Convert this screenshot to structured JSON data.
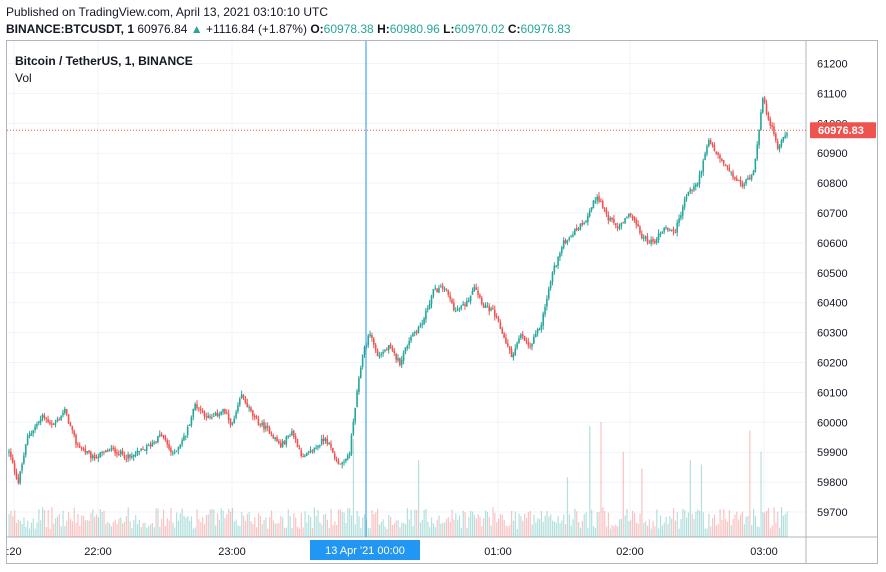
{
  "header": {
    "published": "Published on TradingView.com, April 13, 2021 03:10:10 UTC",
    "symbol": "BINANCE:BTCUSDT, 1",
    "last": "60976.84",
    "change_arrow": "▲",
    "change": "+1116.84 (+1.87%)",
    "o_label": "O:",
    "o_value": "60978.38",
    "h_label": "H:",
    "h_value": "60980.96",
    "l_label": "L:",
    "l_value": "60970.02",
    "c_label": "C:",
    "c_value": "60976.83"
  },
  "legend": {
    "title": "Bitcoin / TetherUS, 1, BINANCE",
    "volume_label": "Vol"
  },
  "colors": {
    "up": "#26a69a",
    "down": "#ef5350",
    "crosshair": "#2196f3",
    "price_tag": "#ef5350",
    "grid": "#f0f3fa"
  },
  "chart_data": {
    "type": "candlestick",
    "y_axis": {
      "ticks": [
        "61200",
        "61100",
        "61000",
        "60900",
        "60800",
        "60700",
        "60600",
        "60500",
        "60400",
        "60300",
        "60200",
        "60100",
        "60000",
        "59900",
        "59800",
        "59700"
      ],
      "range": [
        59650,
        61250
      ]
    },
    "x_axis": {
      "ticks": [
        ":20",
        "22:00",
        "23:00",
        "01:00",
        "02:00",
        "03:00"
      ]
    },
    "crosshair_label": "13 Apr '21  00:00",
    "last_price_tag": "60976.83",
    "trend_points": [
      [
        0,
        59900
      ],
      [
        5,
        59800
      ],
      [
        10,
        59950
      ],
      [
        18,
        60020
      ],
      [
        24,
        59990
      ],
      [
        30,
        60040
      ],
      [
        36,
        59930
      ],
      [
        45,
        59880
      ],
      [
        55,
        59910
      ],
      [
        65,
        59880
      ],
      [
        75,
        59920
      ],
      [
        82,
        59960
      ],
      [
        88,
        59890
      ],
      [
        95,
        59960
      ],
      [
        100,
        60060
      ],
      [
        108,
        60010
      ],
      [
        115,
        60040
      ],
      [
        120,
        59990
      ],
      [
        125,
        60090
      ],
      [
        132,
        60010
      ],
      [
        140,
        59970
      ],
      [
        146,
        59920
      ],
      [
        152,
        59970
      ],
      [
        158,
        59880
      ],
      [
        164,
        59910
      ],
      [
        170,
        59950
      ],
      [
        176,
        59870
      ],
      [
        180,
        59860
      ],
      [
        183,
        59900
      ],
      [
        186,
        60050
      ],
      [
        190,
        60230
      ],
      [
        194,
        60300
      ],
      [
        198,
        60220
      ],
      [
        204,
        60250
      ],
      [
        210,
        60200
      ],
      [
        216,
        60290
      ],
      [
        222,
        60330
      ],
      [
        228,
        60440
      ],
      [
        234,
        60450
      ],
      [
        240,
        60370
      ],
      [
        246,
        60400
      ],
      [
        250,
        60460
      ],
      [
        255,
        60390
      ],
      [
        260,
        60370
      ],
      [
        265,
        60300
      ],
      [
        270,
        60220
      ],
      [
        275,
        60290
      ],
      [
        280,
        60250
      ],
      [
        286,
        60330
      ],
      [
        292,
        60500
      ],
      [
        298,
        60600
      ],
      [
        304,
        60640
      ],
      [
        310,
        60680
      ],
      [
        316,
        60760
      ],
      [
        322,
        60680
      ],
      [
        328,
        60650
      ],
      [
        334,
        60700
      ],
      [
        340,
        60620
      ],
      [
        346,
        60600
      ],
      [
        352,
        60650
      ],
      [
        358,
        60640
      ],
      [
        364,
        60760
      ],
      [
        370,
        60800
      ],
      [
        376,
        60940
      ],
      [
        382,
        60880
      ],
      [
        388,
        60830
      ],
      [
        394,
        60790
      ],
      [
        400,
        60840
      ],
      [
        405,
        61080
      ],
      [
        409,
        61000
      ],
      [
        413,
        60920
      ],
      [
        418,
        60976
      ]
    ],
    "volume_spikes": [
      [
        185,
        0.8
      ],
      [
        220,
        0.55
      ],
      [
        300,
        0.35
      ],
      [
        312,
        0.95
      ],
      [
        318,
        1.0
      ],
      [
        330,
        0.65
      ],
      [
        340,
        0.45
      ],
      [
        366,
        0.55
      ],
      [
        372,
        0.5
      ],
      [
        398,
        0.9
      ],
      [
        404,
        0.65
      ]
    ]
  }
}
